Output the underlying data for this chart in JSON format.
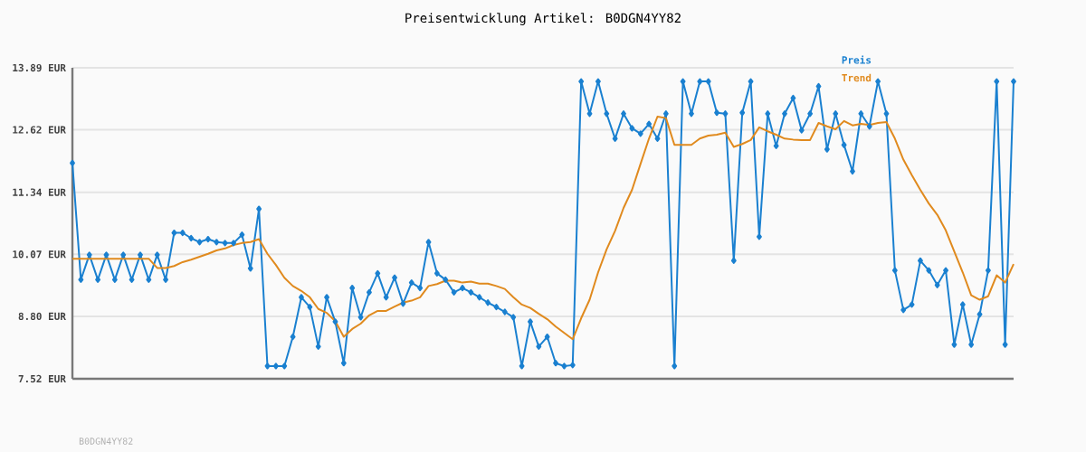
{
  "chart_data": {
    "type": "line",
    "title": "Preisentwicklung Artikel: B0DGN4YY82",
    "annotations": [
      "B0DGN4YY82"
    ],
    "categories": [
      null,
      null,
      null,
      null,
      null,
      null,
      null,
      null,
      null,
      null,
      null,
      null,
      null,
      null,
      null,
      null,
      null,
      null,
      null,
      null,
      null,
      null,
      null,
      null,
      null,
      null,
      null,
      null,
      null,
      null,
      null,
      null,
      null,
      null,
      null,
      null,
      null,
      null,
      null,
      null,
      null,
      null,
      null,
      null,
      null,
      null,
      null,
      null,
      null,
      null,
      null,
      null,
      null,
      null,
      null,
      null,
      null,
      null,
      null,
      null,
      null,
      null,
      null,
      null,
      null,
      null,
      null,
      null,
      null,
      null,
      null,
      null,
      null,
      null,
      null,
      null,
      null,
      null,
      null,
      null,
      null,
      null,
      null,
      null,
      null,
      null,
      null,
      null,
      null,
      null,
      null,
      null,
      null,
      null,
      null,
      null,
      null,
      null,
      null,
      null,
      null,
      null,
      null,
      null,
      null,
      null,
      null,
      null,
      null,
      null,
      null,
      null
    ],
    "series": [
      {
        "name": "Preis",
        "color": "#1a80d0",
        "marker": "diamond",
        "values": [
          11.94,
          9.55,
          10.06,
          9.55,
          10.06,
          9.55,
          10.06,
          9.55,
          10.06,
          9.55,
          10.06,
          9.55,
          10.51,
          10.51,
          10.4,
          10.32,
          10.38,
          10.32,
          10.3,
          10.3,
          10.47,
          9.78,
          11.0,
          7.78,
          7.78,
          7.78,
          8.38,
          9.19,
          8.99,
          8.18,
          9.19,
          8.69,
          7.84,
          9.38,
          8.78,
          9.29,
          9.68,
          9.19,
          9.59,
          9.06,
          9.49,
          9.38,
          10.32,
          9.68,
          9.55,
          9.29,
          9.38,
          9.29,
          9.19,
          9.08,
          8.99,
          8.89,
          8.78,
          7.78,
          8.69,
          8.18,
          8.38,
          7.84,
          7.78,
          7.8,
          13.61,
          12.95,
          13.61,
          12.95,
          12.44,
          12.95,
          12.65,
          12.54,
          12.74,
          12.44,
          12.95,
          7.78,
          13.61,
          12.95,
          13.61,
          13.61,
          12.97,
          12.95,
          9.94,
          12.97,
          13.61,
          10.43,
          12.95,
          12.29,
          12.95,
          13.27,
          12.61,
          12.95,
          13.51,
          12.22,
          12.95,
          12.31,
          11.77,
          12.95,
          12.69,
          13.61,
          12.95,
          9.74,
          8.93,
          9.04,
          9.94,
          9.74,
          9.44,
          9.74,
          8.22,
          9.04,
          8.22,
          8.84,
          9.74,
          13.61,
          8.22,
          13.61
        ]
      },
      {
        "name": "Trend",
        "color": "#e08a1e",
        "marker": "none",
        "values": [
          9.98,
          9.98,
          9.98,
          9.98,
          9.98,
          9.98,
          9.98,
          9.98,
          9.98,
          9.98,
          9.79,
          9.79,
          9.83,
          9.91,
          9.96,
          10.02,
          10.08,
          10.15,
          10.19,
          10.26,
          10.3,
          10.32,
          10.38,
          10.08,
          9.85,
          9.59,
          9.42,
          9.32,
          9.19,
          8.95,
          8.87,
          8.7,
          8.38,
          8.54,
          8.65,
          8.82,
          8.91,
          8.91,
          9.0,
          9.08,
          9.12,
          9.19,
          9.42,
          9.46,
          9.53,
          9.53,
          9.49,
          9.51,
          9.47,
          9.47,
          9.42,
          9.36,
          9.19,
          9.04,
          8.97,
          8.85,
          8.74,
          8.59,
          8.46,
          8.33,
          8.76,
          9.14,
          9.7,
          10.17,
          10.55,
          11.02,
          11.39,
          11.92,
          12.44,
          12.89,
          12.86,
          12.31,
          12.31,
          12.31,
          12.44,
          12.5,
          12.52,
          12.56,
          12.27,
          12.33,
          12.41,
          12.67,
          12.59,
          12.52,
          12.44,
          12.42,
          12.41,
          12.41,
          12.76,
          12.69,
          12.63,
          12.8,
          12.71,
          12.74,
          12.72,
          12.76,
          12.78,
          12.44,
          12.01,
          11.69,
          11.39,
          11.11,
          10.88,
          10.56,
          10.13,
          9.7,
          9.23,
          9.14,
          9.21,
          9.64,
          9.49,
          9.87
        ]
      }
    ],
    "ylim": [
      7.52,
      13.89
    ],
    "yticks": [
      {
        "value": 7.52,
        "label": "7.52 EUR"
      },
      {
        "value": 8.8,
        "label": "8.80 EUR"
      },
      {
        "value": 10.07,
        "label": "10.07 EUR"
      },
      {
        "value": 11.34,
        "label": "11.34 EUR"
      },
      {
        "value": 12.62,
        "label": "12.62 EUR"
      },
      {
        "value": 13.89,
        "label": "13.89 EUR"
      }
    ],
    "grid": "y",
    "legend": "top right"
  }
}
